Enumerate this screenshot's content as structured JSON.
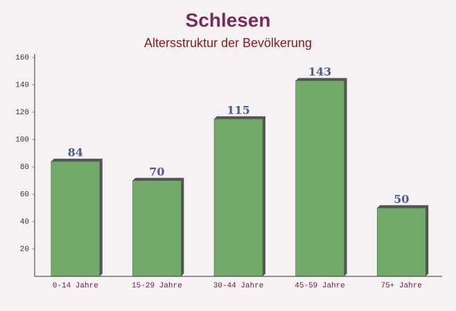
{
  "chart_data": {
    "type": "bar",
    "title": "Schlesen",
    "subtitle": "Altersstruktur der Bevölkerung",
    "categories": [
      "0-14 Jahre",
      "15-29 Jahre",
      "30-44 Jahre",
      "45-59 Jahre",
      "75+ Jahre"
    ],
    "values": [
      84,
      70,
      115,
      143,
      50
    ],
    "color": "#6aa562",
    "ylim": [
      0,
      160
    ],
    "yticks": [
      20,
      40,
      60,
      80,
      100,
      120,
      140,
      160
    ],
    "grid": false
  }
}
